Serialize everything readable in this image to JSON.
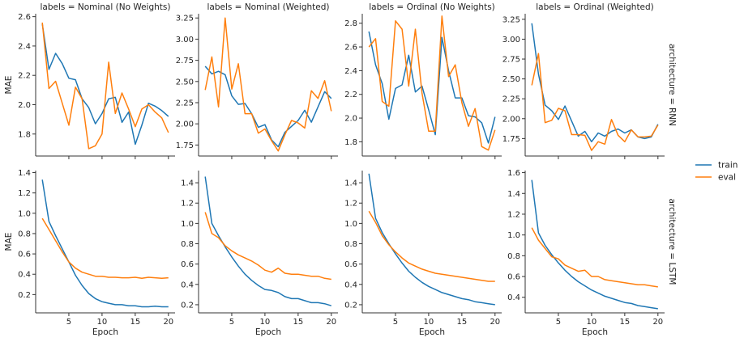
{
  "chart_data": {
    "type": "line",
    "x": [
      1,
      2,
      3,
      4,
      5,
      6,
      7,
      8,
      9,
      10,
      11,
      12,
      13,
      14,
      15,
      16,
      17,
      18,
      19,
      20
    ],
    "xlabel": "Epoch",
    "ylabel": "MAE",
    "x_ticks": [
      5,
      10,
      15,
      20
    ],
    "legend": {
      "position": "right",
      "entries": [
        "train",
        "eval"
      ]
    },
    "colors": {
      "train": "#1f77b4",
      "eval": "#ff7f0e"
    },
    "grid": false,
    "column_titles": [
      "labels = Nominal (No Weights)",
      "labels = Nominal (Weighted)",
      "labels = Ordinal (No Weights)",
      "labels = Ordinal (Weighted)"
    ],
    "row_titles": [
      "architecture = RNN",
      "architecture = LSTM"
    ],
    "panels": [
      {
        "row": 0,
        "col": 0,
        "ylim": [
          1.65,
          2.62
        ],
        "yticks": [
          1.8,
          2.0,
          2.2,
          2.4,
          2.6
        ],
        "ytick_labels": [
          "1.8",
          "2.0",
          "2.2",
          "2.4",
          "2.6"
        ],
        "series": [
          {
            "name": "train",
            "values": [
              2.55,
              2.24,
              2.35,
              2.28,
              2.18,
              2.17,
              2.04,
              1.98,
              1.87,
              1.94,
              2.04,
              2.05,
              1.88,
              1.95,
              1.73,
              1.86,
              2.01,
              1.99,
              1.96,
              1.92
            ]
          },
          {
            "name": "eval",
            "values": [
              2.56,
              2.11,
              2.16,
              2.01,
              1.86,
              2.12,
              2.04,
              1.7,
              1.72,
              1.8,
              2.29,
              1.94,
              2.08,
              1.97,
              1.85,
              1.97,
              2.0,
              1.95,
              1.91,
              1.81
            ]
          }
        ]
      },
      {
        "row": 0,
        "col": 1,
        "ylim": [
          1.62,
          3.3
        ],
        "yticks": [
          1.75,
          2.0,
          2.25,
          2.5,
          2.75,
          3.0,
          3.25
        ],
        "ytick_labels": [
          "1.75",
          "2.00",
          "2.25",
          "2.50",
          "2.75",
          "3.00",
          "3.25"
        ],
        "series": [
          {
            "name": "train",
            "values": [
              2.68,
              2.59,
              2.62,
              2.58,
              2.33,
              2.23,
              2.24,
              2.12,
              1.96,
              1.99,
              1.81,
              1.73,
              1.9,
              1.97,
              2.04,
              2.16,
              2.02,
              2.2,
              2.38,
              2.3
            ]
          },
          {
            "name": "eval",
            "values": [
              2.4,
              2.79,
              2.2,
              3.25,
              2.41,
              2.71,
              2.12,
              2.12,
              1.89,
              1.94,
              1.8,
              1.68,
              1.87,
              2.04,
              2.01,
              1.95,
              2.39,
              2.3,
              2.51,
              2.15
            ]
          }
        ]
      },
      {
        "row": 0,
        "col": 2,
        "ylim": [
          1.68,
          2.88
        ],
        "yticks": [
          1.8,
          2.0,
          2.2,
          2.4,
          2.6,
          2.8
        ],
        "ytick_labels": [
          "1.8",
          "2.0",
          "2.2",
          "2.4",
          "2.6",
          "2.8"
        ],
        "series": [
          {
            "name": "train",
            "values": [
              2.73,
              2.45,
              2.29,
              1.99,
              2.25,
              2.28,
              2.53,
              2.22,
              2.27,
              2.07,
              1.86,
              2.68,
              2.4,
              2.17,
              2.17,
              2.02,
              2.01,
              1.96,
              1.79,
              2.01
            ]
          },
          {
            "name": "eval",
            "values": [
              2.6,
              2.67,
              2.14,
              2.1,
              2.82,
              2.75,
              2.27,
              2.75,
              2.21,
              1.89,
              1.89,
              2.86,
              2.35,
              2.45,
              2.13,
              1.93,
              2.08,
              1.76,
              1.73,
              1.9
            ]
          }
        ]
      },
      {
        "row": 0,
        "col": 3,
        "ylim": [
          1.53,
          3.32
        ],
        "yticks": [
          1.75,
          2.0,
          2.25,
          2.5,
          2.75,
          3.0,
          3.25
        ],
        "ytick_labels": [
          "1.75",
          "2.00",
          "2.25",
          "2.50",
          "2.75",
          "3.00",
          "3.25"
        ],
        "series": [
          {
            "name": "train",
            "values": [
              3.2,
              2.56,
              2.17,
              2.1,
              1.99,
              2.16,
              1.97,
              1.78,
              1.84,
              1.71,
              1.82,
              1.78,
              1.84,
              1.87,
              1.82,
              1.86,
              1.77,
              1.75,
              1.77,
              1.93
            ]
          },
          {
            "name": "eval",
            "values": [
              2.42,
              2.82,
              1.95,
              1.98,
              2.13,
              2.1,
              1.8,
              1.8,
              1.79,
              1.6,
              1.71,
              1.68,
              1.99,
              1.79,
              1.71,
              1.86,
              1.77,
              1.77,
              1.78,
              1.92
            ]
          }
        ]
      },
      {
        "row": 1,
        "col": 0,
        "ylim": [
          0.02,
          1.42
        ],
        "yticks": [
          0.2,
          0.4,
          0.6,
          0.8,
          1.0,
          1.2,
          1.4
        ],
        "ytick_labels": [
          "0.2",
          "0.4",
          "0.6",
          "0.8",
          "1.0",
          "1.2",
          "1.4"
        ],
        "series": [
          {
            "name": "train",
            "values": [
              1.33,
              0.92,
              0.78,
              0.65,
              0.52,
              0.39,
              0.29,
              0.21,
              0.16,
              0.13,
              0.115,
              0.1,
              0.1,
              0.09,
              0.09,
              0.08,
              0.08,
              0.085,
              0.08,
              0.08
            ]
          },
          {
            "name": "eval",
            "values": [
              0.95,
              0.84,
              0.73,
              0.62,
              0.52,
              0.46,
              0.42,
              0.4,
              0.38,
              0.38,
              0.37,
              0.37,
              0.365,
              0.365,
              0.37,
              0.36,
              0.37,
              0.365,
              0.36,
              0.365
            ]
          }
        ]
      },
      {
        "row": 1,
        "col": 1,
        "ylim": [
          0.12,
          1.52
        ],
        "yticks": [
          0.2,
          0.4,
          0.6,
          0.8,
          1.0,
          1.2,
          1.4
        ],
        "ytick_labels": [
          "0.2",
          "0.4",
          "0.6",
          "0.8",
          "1.0",
          "1.2",
          "1.4"
        ],
        "series": [
          {
            "name": "train",
            "values": [
              1.46,
              1.0,
              0.88,
              0.77,
              0.67,
              0.58,
              0.5,
              0.44,
              0.39,
              0.35,
              0.34,
              0.32,
              0.28,
              0.26,
              0.26,
              0.24,
              0.22,
              0.22,
              0.21,
              0.19
            ]
          },
          {
            "name": "eval",
            "values": [
              1.11,
              0.9,
              0.86,
              0.78,
              0.73,
              0.69,
              0.66,
              0.63,
              0.59,
              0.54,
              0.52,
              0.56,
              0.51,
              0.5,
              0.5,
              0.49,
              0.48,
              0.48,
              0.46,
              0.45
            ]
          }
        ]
      },
      {
        "row": 1,
        "col": 2,
        "ylim": [
          0.12,
          1.52
        ],
        "yticks": [
          0.2,
          0.4,
          0.6,
          0.8,
          1.0,
          1.2,
          1.4
        ],
        "ytick_labels": [
          "0.2",
          "0.4",
          "0.6",
          "0.8",
          "1.0",
          "1.2",
          "1.4"
        ],
        "series": [
          {
            "name": "train",
            "values": [
              1.49,
              1.05,
              0.91,
              0.8,
              0.7,
              0.61,
              0.53,
              0.47,
              0.42,
              0.38,
              0.35,
              0.32,
              0.3,
              0.28,
              0.26,
              0.25,
              0.23,
              0.22,
              0.21,
              0.2
            ]
          },
          {
            "name": "eval",
            "values": [
              1.12,
              1.01,
              0.88,
              0.79,
              0.72,
              0.66,
              0.61,
              0.58,
              0.55,
              0.53,
              0.51,
              0.5,
              0.49,
              0.48,
              0.47,
              0.46,
              0.45,
              0.44,
              0.43,
              0.43
            ]
          }
        ]
      },
      {
        "row": 1,
        "col": 3,
        "ylim": [
          0.25,
          1.62
        ],
        "yticks": [
          0.4,
          0.6,
          0.8,
          1.0,
          1.2,
          1.4,
          1.6
        ],
        "ytick_labels": [
          "0.4",
          "0.6",
          "0.8",
          "1.0",
          "1.2",
          "1.4",
          "1.6"
        ],
        "series": [
          {
            "name": "train",
            "values": [
              1.53,
              1.02,
              0.9,
              0.81,
              0.73,
              0.66,
              0.6,
              0.55,
              0.51,
              0.47,
              0.44,
              0.41,
              0.39,
              0.37,
              0.35,
              0.34,
              0.32,
              0.31,
              0.3,
              0.29
            ]
          },
          {
            "name": "eval",
            "values": [
              1.07,
              0.95,
              0.87,
              0.79,
              0.77,
              0.71,
              0.68,
              0.65,
              0.66,
              0.6,
              0.6,
              0.57,
              0.56,
              0.55,
              0.54,
              0.53,
              0.52,
              0.52,
              0.51,
              0.5
            ]
          }
        ]
      }
    ]
  }
}
